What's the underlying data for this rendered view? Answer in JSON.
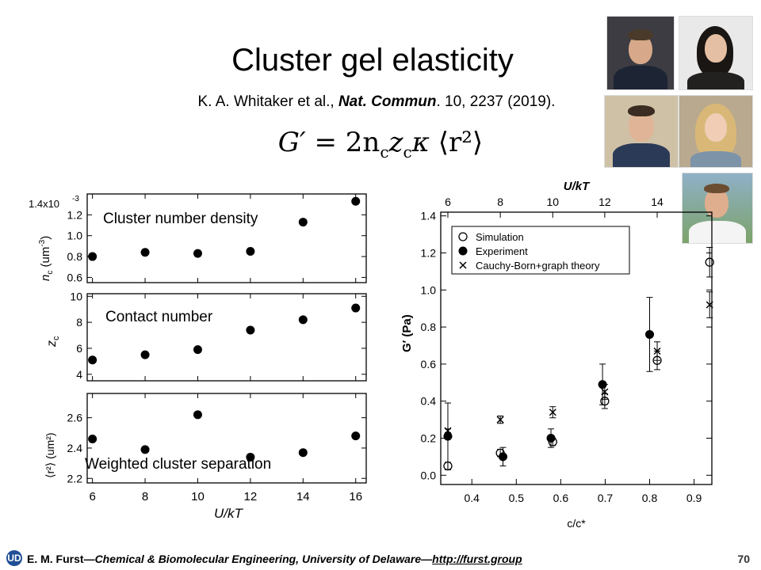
{
  "slide": {
    "title": "Cluster gel elasticity",
    "citation_authors": "K. A. Whitaker et al., ",
    "citation_journal": "Nat. Commun",
    "citation_rest": ". 10, 2237 (2019).",
    "formula_lhs": "G′",
    "formula_rhs": "= 2n",
    "formula_sub_c": "c",
    "formula_z": "z",
    "formula_kappa": "κ",
    "formula_r2": "⟨r²⟩",
    "footer_name": "E. M. Furst",
    "footer_affil": "—Chemical & Biomolecular Engineering, University of Delaware—",
    "footer_link": "http://furst.group",
    "page_number": "70",
    "logo_text": "UD"
  },
  "chart_data": [
    {
      "type": "scatter",
      "panel_label": "Cluster number density",
      "ylabel": "n_c (um⁻³)",
      "ylabel_main": "n",
      "ylabel_sub": "c",
      "ylabel_unit": " (um",
      "ylabel_sup": "-3",
      "ylabel_close": ")",
      "scale_note": "1.4x10",
      "scale_exp": "-3",
      "ylim": [
        0.55,
        1.4
      ],
      "yticks": [
        0.6,
        0.8,
        1.0,
        1.2
      ],
      "ytick_labels": [
        "0.6",
        "0.8",
        "1.0",
        "1.2"
      ],
      "x": [
        6,
        8,
        10,
        12,
        14,
        16
      ],
      "y": [
        0.8,
        0.84,
        0.83,
        0.85,
        1.13,
        1.33
      ]
    },
    {
      "type": "scatter",
      "panel_label": "Contact number",
      "ylabel": "z_c",
      "ylabel_main": "z",
      "ylabel_sub": "c",
      "ylim": [
        3.5,
        10.2
      ],
      "yticks": [
        4,
        6,
        8,
        10
      ],
      "ytick_labels": [
        "4",
        "6",
        "8",
        "10"
      ],
      "x": [
        6,
        8,
        10,
        12,
        14,
        16
      ],
      "y": [
        5.1,
        5.5,
        5.9,
        7.4,
        8.2,
        9.1
      ]
    },
    {
      "type": "scatter",
      "panel_label": "Weighted cluster separation",
      "ylabel": "⟨r²⟩ (um²)",
      "ylabel_text": "⟨r²⟩ (um²)",
      "ylim": [
        2.17,
        2.76
      ],
      "yticks": [
        2.2,
        2.4,
        2.6
      ],
      "ytick_labels": [
        "2.2",
        "2.4",
        "2.6"
      ],
      "x": [
        6,
        8,
        10,
        12,
        14,
        16
      ],
      "y": [
        2.46,
        2.39,
        2.62,
        2.34,
        2.37,
        2.48
      ],
      "xlabel": "U/kT",
      "xlim": [
        5.8,
        16.4
      ],
      "xticks": [
        6,
        8,
        10,
        12,
        14,
        16
      ],
      "xtick_labels": [
        "6",
        "8",
        "10",
        "12",
        "14",
        "16"
      ]
    },
    {
      "type": "scatter",
      "xlabel": "c/c*",
      "ylabel": "G′ (Pa)",
      "top_xlabel": "U/kT",
      "xlim": [
        0.33,
        0.94
      ],
      "ylim": [
        -0.05,
        1.42
      ],
      "xticks": [
        0.4,
        0.5,
        0.6,
        0.7,
        0.8,
        0.9
      ],
      "xtick_labels": [
        "0.4",
        "0.5",
        "0.6",
        "0.7",
        "0.8",
        "0.9"
      ],
      "yticks": [
        0.0,
        0.2,
        0.4,
        0.6,
        0.8,
        1.0,
        1.2,
        1.4
      ],
      "ytick_labels": [
        "0.0",
        "0.2",
        "0.4",
        "0.6",
        "0.8",
        "1.0",
        "1.2",
        "1.4"
      ],
      "top_xticks": [
        6,
        8,
        10,
        12,
        14
      ],
      "top_xtick_labels": [
        "6",
        "8",
        "10",
        "12",
        "14"
      ],
      "top_xtick_positions_cc": [
        0.346,
        0.464,
        0.582,
        0.699,
        0.817
      ],
      "legend_position": "top-left",
      "series": [
        {
          "name": "Simulation",
          "marker": "open-circle",
          "x": [
            0.346,
            0.464,
            0.582,
            0.699,
            0.817,
            0.935
          ],
          "y": [
            0.05,
            0.12,
            0.18,
            0.4,
            0.62,
            1.15
          ],
          "err": [
            0.02,
            0.02,
            0.02,
            0.04,
            0.05,
            0.08
          ]
        },
        {
          "name": "Experiment",
          "marker": "filled-circle",
          "x": [
            0.346,
            0.47,
            0.578,
            0.694,
            0.8
          ],
          "y": [
            0.21,
            0.1,
            0.2,
            0.49,
            0.76
          ],
          "err": [
            0.18,
            0.05,
            0.05,
            0.11,
            0.2
          ]
        },
        {
          "name": "Cauchy-Born+graph theory",
          "marker": "x",
          "x": [
            0.346,
            0.464,
            0.582,
            0.699,
            0.817,
            0.935
          ],
          "y": [
            0.24,
            0.3,
            0.34,
            0.45,
            0.67,
            0.92
          ],
          "err": [
            0.01,
            0.02,
            0.03,
            0.04,
            0.05,
            0.07
          ]
        }
      ]
    }
  ]
}
